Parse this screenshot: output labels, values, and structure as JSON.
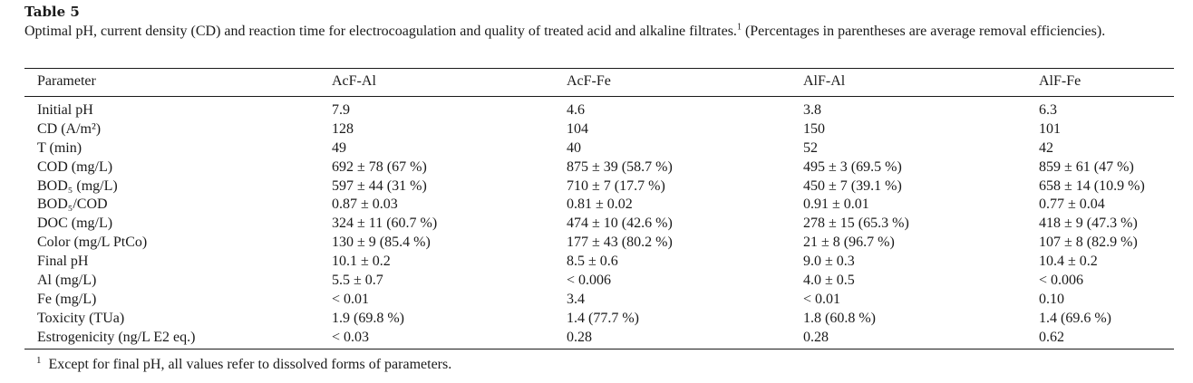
{
  "table": {
    "label": "Table 5",
    "caption": "Optimal pH, current density (CD) and reaction time for electrocoagulation and quality of treated acid and alkaline filtrates.",
    "caption_mark": "1",
    "caption_note": " (Percentages in parentheses are average removal efficiencies).",
    "headers": [
      "Parameter",
      "AcF-Al",
      "AcF-Fe",
      "AlF-Al",
      "AlF-Fe"
    ],
    "rows": [
      [
        "Initial pH",
        "7.9",
        "4.6",
        "3.8",
        "6.3"
      ],
      [
        "CD (A/m²)",
        "128",
        "104",
        "150",
        "101"
      ],
      [
        "T (min)",
        "49",
        "40",
        "52",
        "42"
      ],
      [
        "COD (mg/L)",
        "692 ± 78 (67 %)",
        "875 ± 39 (58.7 %)",
        "495 ± 3 (69.5 %)",
        "859 ± 61 (47 %)"
      ],
      [
        "BOD₅ (mg/L)",
        "597 ± 44 (31 %)",
        "710 ± 7 (17.7 %)",
        "450 ± 7 (39.1 %)",
        "658 ± 14 (10.9 %)"
      ],
      [
        "BOD₅/COD",
        "0.87 ± 0.03",
        "0.81 ± 0.02",
        "0.91 ± 0.01",
        "0.77 ± 0.04"
      ],
      [
        "DOC (mg/L)",
        "324 ± 11 (60.7 %)",
        "474 ± 10 (42.6 %)",
        "278 ± 15 (65.3 %)",
        "418 ± 9 (47.3 %)"
      ],
      [
        "Color (mg/L PtCo)",
        "130 ± 9 (85.4 %)",
        "177 ± 43 (80.2 %)",
        "21 ± 8 (96.7 %)",
        "107 ± 8 (82.9 %)"
      ],
      [
        "Final pH",
        "10.1 ± 0.2",
        "8.5 ± 0.6",
        "9.0 ± 0.3",
        "10.4 ± 0.2"
      ],
      [
        "Al (mg/L)",
        "5.5 ± 0.7",
        "< 0.006",
        "4.0 ± 0.5",
        "< 0.006"
      ],
      [
        "Fe (mg/L)",
        "< 0.01",
        "3.4",
        "< 0.01",
        "0.10"
      ],
      [
        "Toxicity (TUa)",
        "1.9 (69.8 %)",
        "1.4 (77.7 %)",
        "1.8 (60.8 %)",
        "1.4 (69.6 %)"
      ],
      [
        "Estrogenicity (ng/L E2 eq.)",
        "< 0.03",
        "0.28",
        "0.28",
        "0.62"
      ]
    ],
    "footnote_mark": "1",
    "footnote": "Except for final pH, all values refer to dissolved forms of parameters."
  }
}
